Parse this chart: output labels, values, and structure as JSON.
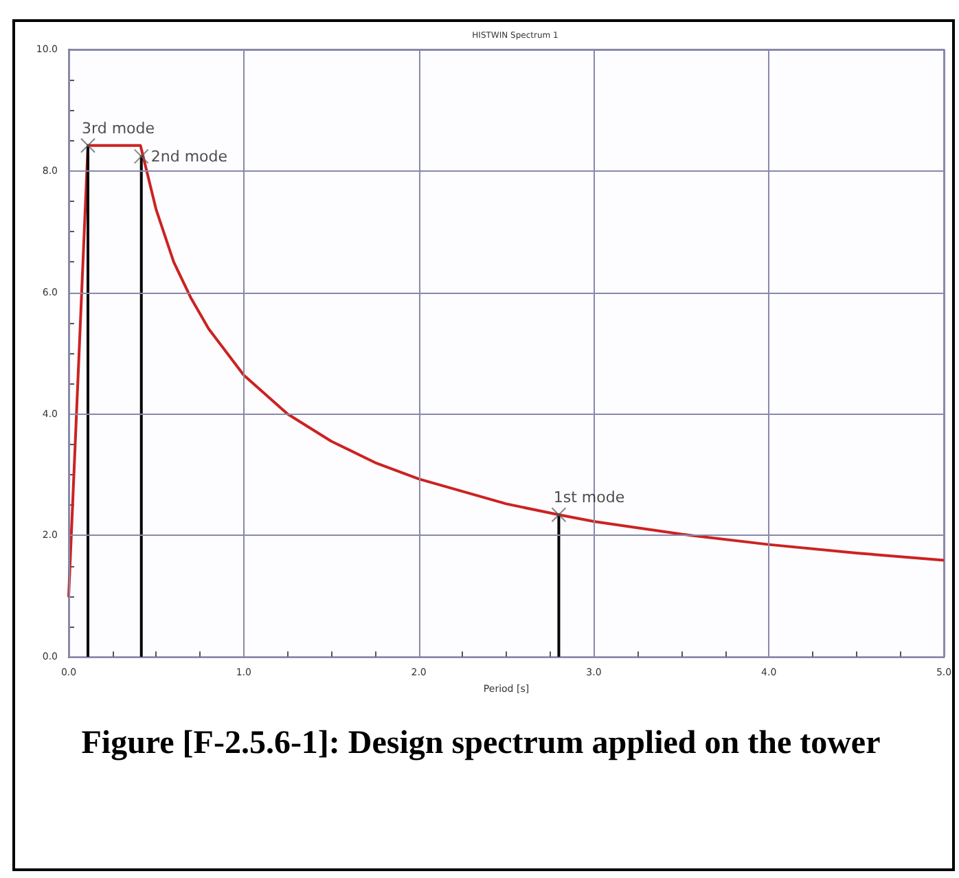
{
  "chart_data": {
    "type": "line",
    "title": "HISTWIN Spectrum 1",
    "xlabel": "Period [s]",
    "xlim": [
      0,
      5
    ],
    "ylim": [
      0,
      10
    ],
    "xticks": [
      {
        "value": 0,
        "label": "0.0"
      },
      {
        "value": 0.25,
        "label": null
      },
      {
        "value": 0.5,
        "label": null
      },
      {
        "value": 0.75,
        "label": null
      },
      {
        "value": 1,
        "label": "1.0"
      },
      {
        "value": 1.25,
        "label": null
      },
      {
        "value": 1.5,
        "label": null
      },
      {
        "value": 1.75,
        "label": null
      },
      {
        "value": 2,
        "label": "2.0"
      },
      {
        "value": 2.25,
        "label": null
      },
      {
        "value": 2.5,
        "label": null
      },
      {
        "value": 2.75,
        "label": null
      },
      {
        "value": 3,
        "label": "3.0"
      },
      {
        "value": 3.25,
        "label": null
      },
      {
        "value": 3.5,
        "label": null
      },
      {
        "value": 3.75,
        "label": null
      },
      {
        "value": 4,
        "label": "4.0"
      },
      {
        "value": 4.25,
        "label": null
      },
      {
        "value": 4.5,
        "label": null
      },
      {
        "value": 4.75,
        "label": null
      },
      {
        "value": 5,
        "label": "5.0"
      }
    ],
    "yticks": [
      {
        "value": 0,
        "label": "0.0"
      },
      {
        "value": 0.5,
        "label": null
      },
      {
        "value": 1,
        "label": null
      },
      {
        "value": 1.5,
        "label": null
      },
      {
        "value": 2,
        "label": "2.0"
      },
      {
        "value": 2.5,
        "label": null
      },
      {
        "value": 3,
        "label": null
      },
      {
        "value": 3.5,
        "label": null
      },
      {
        "value": 4,
        "label": "4.0"
      },
      {
        "value": 4.5,
        "label": null
      },
      {
        "value": 5,
        "label": null
      },
      {
        "value": 5.5,
        "label": null
      },
      {
        "value": 6,
        "label": "6.0"
      },
      {
        "value": 6.5,
        "label": null
      },
      {
        "value": 7,
        "label": null
      },
      {
        "value": 7.5,
        "label": null
      },
      {
        "value": 8,
        "label": "8.0"
      },
      {
        "value": 8.5,
        "label": null
      },
      {
        "value": 9,
        "label": null
      },
      {
        "value": 9.5,
        "label": null
      },
      {
        "value": 10,
        "label": "10.0"
      }
    ],
    "grid": true,
    "marker": "none",
    "line_style": "solid",
    "series": [
      {
        "color": "#cc2222",
        "x": [
          0,
          0.11,
          0.41,
          0.5,
          0.6,
          0.7,
          0.8,
          1.0,
          1.25,
          1.5,
          1.75,
          2.0,
          2.5,
          2.8,
          3.0,
          3.5,
          4.0,
          4.5,
          5.0
        ],
        "values": [
          1.0,
          8.42,
          8.42,
          7.36,
          6.5,
          5.9,
          5.4,
          4.64,
          4.0,
          3.55,
          3.2,
          2.93,
          2.52,
          2.34,
          2.23,
          2.02,
          1.85,
          1.71,
          1.59
        ]
      },
      {
        "color": "#000000",
        "x": [
          0.11,
          0.11
        ],
        "values": [
          0,
          8.42
        ]
      },
      {
        "color": "#000000",
        "x": [
          0.415,
          0.415
        ],
        "values": [
          0,
          8.24
        ]
      },
      {
        "color": "#000000",
        "x": [
          2.8,
          2.8
        ],
        "values": [
          0,
          2.34
        ]
      },
      {
        "type": "scatter",
        "marker": "cross",
        "color": "#666666",
        "x": [
          0.11,
          0.415,
          2.8
        ],
        "values": [
          8.42,
          8.24,
          2.34
        ]
      }
    ],
    "annotations": [
      {
        "text": "3rd mode",
        "x": 0.11,
        "y": 8.42
      },
      {
        "text": "2nd mode",
        "x": 0.415,
        "y": 8.24
      },
      {
        "text": "1st mode",
        "x": 2.8,
        "y": 2.34
      },
      "Figure [F-2.5.6-1]: Design spectrum applied on the tower"
    ]
  }
}
